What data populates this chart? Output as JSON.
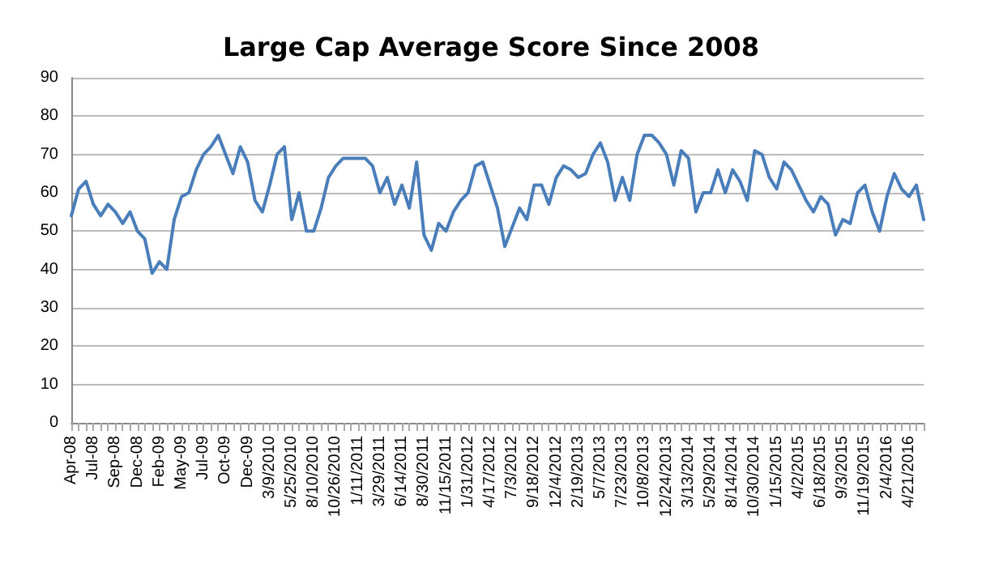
{
  "chart_data": {
    "type": "line",
    "title": "Large Cap Average Score Since 2008",
    "categories": [
      "Apr-08",
      null,
      null,
      "Jul-08",
      null,
      null,
      "Sep-08",
      null,
      null,
      "Dec-08",
      null,
      null,
      "Feb-09",
      null,
      null,
      "May-09",
      null,
      null,
      "Jul-09",
      null,
      null,
      "Oct-09",
      null,
      null,
      "Dec-09",
      null,
      null,
      "3/9/2010",
      null,
      null,
      "5/25/2010",
      null,
      null,
      "8/10/2010",
      null,
      null,
      "10/26/2010",
      null,
      null,
      "1/11/2011",
      null,
      null,
      "3/29/2011",
      null,
      null,
      "6/14/2011",
      null,
      null,
      "8/30/2011",
      null,
      null,
      "11/15/2011",
      null,
      null,
      "1/31/2012",
      null,
      null,
      "4/17/2012",
      null,
      null,
      "7/3/2012",
      null,
      null,
      "9/18/2012",
      null,
      null,
      "12/4/2012",
      null,
      null,
      "2/19/2013",
      null,
      null,
      "5/7/2013",
      null,
      null,
      "7/23/2013",
      null,
      null,
      "10/8/2013",
      null,
      null,
      "12/24/2013",
      null,
      null,
      "3/13/2014",
      null,
      null,
      "5/29/2014",
      null,
      null,
      "8/14/2014",
      null,
      null,
      "10/30/2014",
      null,
      null,
      "1/15/2015",
      null,
      null,
      "4/2/2015",
      null,
      null,
      "6/18/2015",
      null,
      null,
      "9/3/2015",
      null,
      null,
      "11/19/2015",
      null,
      null,
      "2/4/2016",
      null,
      null,
      "4/21/2016",
      null,
      null
    ],
    "series": [
      {
        "color": "#4a7ebb",
        "values": [
          54,
          61,
          63,
          57,
          54,
          57,
          55,
          52,
          55,
          50,
          48,
          39,
          42,
          40,
          53,
          59,
          60,
          66,
          70,
          72,
          75,
          70,
          65,
          72,
          68,
          58,
          55,
          62,
          70,
          72,
          53,
          60,
          50,
          50,
          56,
          64,
          67,
          69,
          69,
          69,
          69,
          67,
          60,
          64,
          57,
          62,
          56,
          68,
          49,
          45,
          52,
          50,
          55,
          58,
          60,
          67,
          68,
          62,
          56,
          46,
          51,
          56,
          53,
          62,
          62,
          57,
          64,
          67,
          66,
          64,
          65,
          70,
          73,
          68,
          58,
          64,
          58,
          70,
          75,
          75,
          73,
          70,
          62,
          71,
          69,
          55,
          60,
          60,
          66,
          60,
          66,
          63,
          58,
          71,
          70,
          64,
          61,
          68,
          66,
          62,
          58,
          55,
          59,
          57,
          49,
          53,
          52,
          60,
          62,
          55,
          50,
          59,
          65,
          61,
          59,
          62,
          53
        ]
      }
    ],
    "ylim": [
      0,
      90
    ],
    "yticks": [
      0,
      10,
      20,
      30,
      40,
      50,
      60,
      70,
      80,
      90
    ],
    "grid": "y",
    "marker": "none",
    "line_style": "solid"
  }
}
